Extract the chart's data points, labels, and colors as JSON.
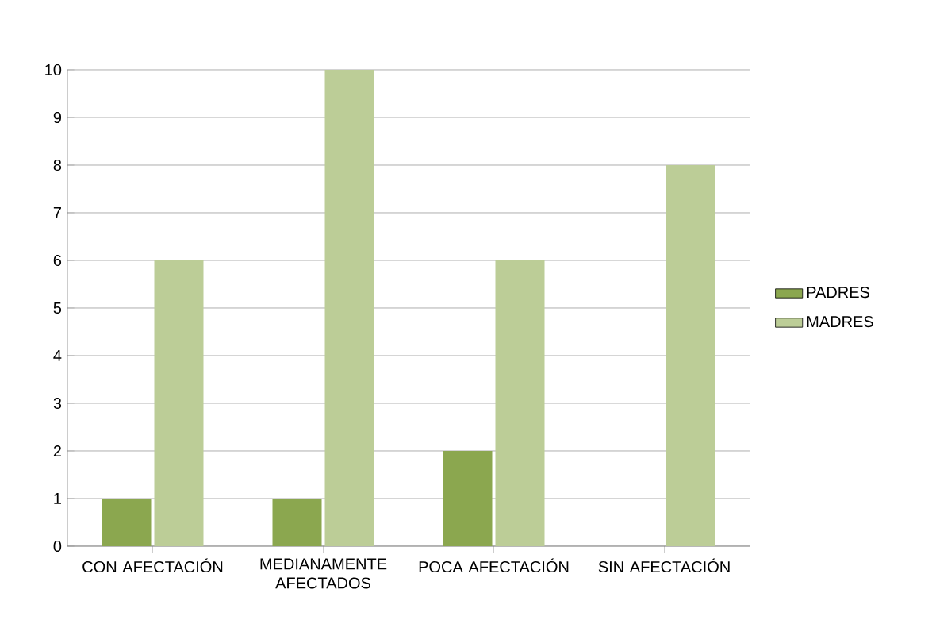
{
  "chart_data": {
    "type": "bar",
    "categories": [
      "CON AFECTACIÓN",
      "MEDIANAMENTE AFECTADOS",
      "POCA AFECTACIÓN",
      "SIN AFECTACIÓN"
    ],
    "series": [
      {
        "name": "PADRES",
        "color": "#8ba74f",
        "values": [
          1,
          1,
          2,
          0
        ]
      },
      {
        "name": "MADRES",
        "color": "#bccd97",
        "values": [
          6,
          10,
          6,
          8
        ]
      }
    ],
    "ylim": [
      0,
      10
    ],
    "yticks": [
      0,
      1,
      2,
      3,
      4,
      5,
      6,
      7,
      8,
      9,
      10
    ],
    "grid": "y",
    "legend": "right"
  }
}
